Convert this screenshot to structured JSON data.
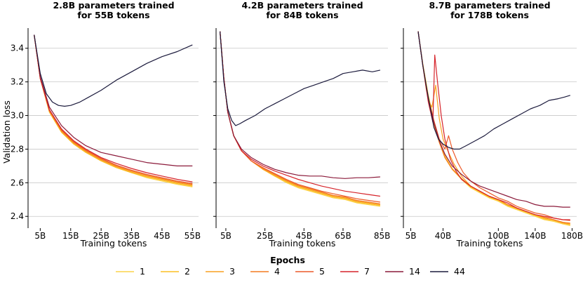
{
  "figure": {
    "ylabel": "Validation loss",
    "xlabel": "Training tokens",
    "legend_title": "Epochs"
  },
  "legend": [
    {
      "label": "1",
      "color": "#fcd34a"
    },
    {
      "label": "2",
      "color": "#fbbf24"
    },
    {
      "label": "3",
      "color": "#f9a020"
    },
    {
      "label": "4",
      "color": "#f47b20"
    },
    {
      "label": "5",
      "color": "#ec5a2a"
    },
    {
      "label": "7",
      "color": "#d6242b"
    },
    {
      "label": "14",
      "color": "#8b1a3a"
    },
    {
      "label": "44",
      "color": "#1c1b3d"
    }
  ],
  "chart_data": [
    {
      "type": "line",
      "title": "2.8B parameters trained\nfor 55B tokens",
      "xlabel": "Training tokens",
      "ylabel": "Validation loss",
      "xlim": [
        1,
        57
      ],
      "ylim": [
        2.33,
        3.52
      ],
      "yticks": [
        2.4,
        2.6,
        2.8,
        3.0,
        3.2,
        3.4
      ],
      "ytick_labels": [
        "2.4",
        "2.6",
        "2.8",
        "3.0",
        "3.2",
        "3.4"
      ],
      "xticks": [
        5,
        15,
        25,
        35,
        45,
        55
      ],
      "xtick_labels": [
        "5B",
        "15B",
        "25B",
        "35B",
        "45B",
        "55B"
      ],
      "series": [
        {
          "name": "1",
          "x": [
            3,
            5,
            8,
            12,
            16,
            20,
            25,
            30,
            35,
            40,
            45,
            50,
            55
          ],
          "y": [
            3.48,
            3.22,
            3.02,
            2.9,
            2.83,
            2.78,
            2.73,
            2.69,
            2.66,
            2.63,
            2.61,
            2.59,
            2.575
          ]
        },
        {
          "name": "2",
          "x": [
            3,
            5,
            8,
            12,
            16,
            20,
            25,
            30,
            35,
            40,
            45,
            50,
            55
          ],
          "y": [
            3.48,
            3.22,
            3.02,
            2.9,
            2.83,
            2.78,
            2.73,
            2.69,
            2.66,
            2.635,
            2.615,
            2.595,
            2.58
          ]
        },
        {
          "name": "3",
          "x": [
            3,
            5,
            8,
            12,
            16,
            20,
            25,
            30,
            35,
            40,
            45,
            50,
            55
          ],
          "y": [
            3.48,
            3.22,
            3.025,
            2.905,
            2.835,
            2.785,
            2.735,
            2.695,
            2.665,
            2.64,
            2.62,
            2.6,
            2.585
          ]
        },
        {
          "name": "4",
          "x": [
            3,
            5,
            8,
            12,
            16,
            20,
            25,
            30,
            35,
            40,
            45,
            50,
            55
          ],
          "y": [
            3.48,
            3.22,
            3.03,
            2.91,
            2.84,
            2.79,
            2.74,
            2.7,
            2.67,
            2.645,
            2.625,
            2.605,
            2.59
          ]
        },
        {
          "name": "5",
          "x": [
            3,
            5,
            8,
            12,
            16,
            20,
            25,
            30,
            35,
            40,
            45,
            50,
            55
          ],
          "y": [
            3.48,
            3.22,
            3.03,
            2.915,
            2.845,
            2.795,
            2.745,
            2.705,
            2.675,
            2.65,
            2.63,
            2.61,
            2.595
          ]
        },
        {
          "name": "7",
          "x": [
            3,
            5,
            8,
            12,
            16,
            20,
            25,
            30,
            35,
            40,
            45,
            50,
            55
          ],
          "y": [
            3.48,
            3.22,
            3.035,
            2.92,
            2.85,
            2.8,
            2.75,
            2.715,
            2.685,
            2.66,
            2.64,
            2.62,
            2.605
          ]
        },
        {
          "name": "14",
          "x": [
            3,
            5,
            8,
            12,
            16,
            20,
            25,
            30,
            35,
            40,
            45,
            50,
            55
          ],
          "y": [
            3.48,
            3.23,
            3.05,
            2.94,
            2.87,
            2.82,
            2.78,
            2.76,
            2.74,
            2.72,
            2.71,
            2.7,
            2.7
          ]
        },
        {
          "name": "44",
          "x": [
            3,
            5,
            7,
            9,
            11,
            13,
            15,
            18,
            21,
            25,
            30,
            35,
            40,
            45,
            50,
            55
          ],
          "y": [
            3.48,
            3.25,
            3.13,
            3.08,
            3.06,
            3.055,
            3.06,
            3.08,
            3.11,
            3.15,
            3.21,
            3.26,
            3.31,
            3.35,
            3.38,
            3.42
          ]
        }
      ]
    },
    {
      "type": "line",
      "title": "4.2B parameters trained\nfor 84B tokens",
      "xlabel": "Training tokens",
      "ylabel": "",
      "xlim": [
        0,
        88
      ],
      "ylim": [
        2.33,
        3.52
      ],
      "yticks": [
        2.4,
        2.6,
        2.8,
        3.0,
        3.2,
        3.4
      ],
      "xticks": [
        5,
        25,
        45,
        65,
        85
      ],
      "xtick_labels": [
        "5B",
        "25B",
        "45B",
        "65B",
        "85B"
      ],
      "series": [
        {
          "name": "1",
          "x": [
            2,
            4,
            6,
            9,
            13,
            18,
            24,
            30,
            36,
            42,
            48,
            54,
            60,
            66,
            72,
            78,
            84
          ],
          "y": [
            3.5,
            3.22,
            3.02,
            2.88,
            2.79,
            2.73,
            2.68,
            2.64,
            2.6,
            2.57,
            2.55,
            2.53,
            2.51,
            2.5,
            2.48,
            2.47,
            2.46
          ]
        },
        {
          "name": "2",
          "x": [
            2,
            4,
            6,
            9,
            13,
            18,
            24,
            30,
            36,
            42,
            48,
            54,
            60,
            66,
            72,
            78,
            84
          ],
          "y": [
            3.5,
            3.22,
            3.02,
            2.88,
            2.79,
            2.73,
            2.68,
            2.64,
            2.605,
            2.575,
            2.555,
            2.535,
            2.515,
            2.505,
            2.485,
            2.475,
            2.465
          ]
        },
        {
          "name": "3",
          "x": [
            2,
            4,
            6,
            9,
            13,
            18,
            24,
            30,
            36,
            42,
            48,
            54,
            60,
            66,
            72,
            78,
            84
          ],
          "y": [
            3.5,
            3.22,
            3.02,
            2.88,
            2.79,
            2.73,
            2.68,
            2.645,
            2.61,
            2.58,
            2.56,
            2.54,
            2.52,
            2.51,
            2.49,
            2.48,
            2.47
          ]
        },
        {
          "name": "4",
          "x": [
            2,
            4,
            6,
            9,
            13,
            18,
            24,
            30,
            36,
            42,
            48,
            54,
            60,
            66,
            72,
            78,
            84
          ],
          "y": [
            3.5,
            3.22,
            3.02,
            2.88,
            2.79,
            2.73,
            2.685,
            2.65,
            2.615,
            2.585,
            2.565,
            2.545,
            2.525,
            2.515,
            2.495,
            2.485,
            2.475
          ]
        },
        {
          "name": "5",
          "x": [
            2,
            4,
            6,
            9,
            13,
            18,
            24,
            30,
            36,
            42,
            48,
            54,
            60,
            66,
            72,
            78,
            84
          ],
          "y": [
            3.5,
            3.22,
            3.02,
            2.88,
            2.79,
            2.73,
            2.69,
            2.655,
            2.62,
            2.59,
            2.57,
            2.55,
            2.535,
            2.52,
            2.505,
            2.495,
            2.485
          ]
        },
        {
          "name": "7",
          "x": [
            2,
            4,
            6,
            9,
            13,
            18,
            24,
            30,
            36,
            42,
            48,
            54,
            60,
            66,
            72,
            78,
            84
          ],
          "y": [
            3.5,
            3.22,
            3.02,
            2.88,
            2.79,
            2.74,
            2.7,
            2.67,
            2.645,
            2.62,
            2.6,
            2.58,
            2.565,
            2.55,
            2.54,
            2.53,
            2.52
          ]
        },
        {
          "name": "14",
          "x": [
            2,
            4,
            6,
            9,
            13,
            18,
            24,
            30,
            36,
            42,
            48,
            54,
            60,
            66,
            72,
            78,
            84
          ],
          "y": [
            3.5,
            3.22,
            3.02,
            2.88,
            2.8,
            2.75,
            2.71,
            2.68,
            2.66,
            2.645,
            2.64,
            2.64,
            2.63,
            2.625,
            2.63,
            2.63,
            2.635
          ]
        },
        {
          "name": "44",
          "x": [
            2,
            4,
            6,
            8,
            10,
            12,
            15,
            20,
            25,
            30,
            35,
            40,
            45,
            50,
            55,
            60,
            65,
            70,
            75,
            80,
            84
          ],
          "y": [
            3.5,
            3.2,
            3.04,
            2.97,
            2.94,
            2.95,
            2.97,
            3.0,
            3.04,
            3.07,
            3.1,
            3.13,
            3.16,
            3.18,
            3.2,
            3.22,
            3.25,
            3.26,
            3.27,
            3.26,
            3.27
          ]
        }
      ]
    },
    {
      "type": "line",
      "title": "8.7B parameters trained\nfor 178B tokens",
      "xlabel": "Training tokens",
      "ylabel": "",
      "xlim": [
        -3,
        185
      ],
      "ylim": [
        2.33,
        3.52
      ],
      "yticks": [
        2.4,
        2.6,
        2.8,
        3.0,
        3.2,
        3.4
      ],
      "xticks": [
        5,
        40,
        100,
        140,
        180
      ],
      "xtick_labels": [
        "5B",
        "40B",
        "100B",
        "140B",
        "180B"
      ],
      "series": [
        {
          "name": "1",
          "x": [
            13,
            18,
            24,
            30,
            36,
            42,
            50,
            60,
            70,
            80,
            90,
            100,
            110,
            120,
            130,
            140,
            150,
            160,
            170,
            178
          ],
          "y": [
            3.5,
            3.3,
            3.1,
            2.95,
            2.84,
            2.75,
            2.68,
            2.62,
            2.57,
            2.54,
            2.51,
            2.49,
            2.46,
            2.44,
            2.42,
            2.4,
            2.38,
            2.37,
            2.355,
            2.345
          ]
        },
        {
          "name": "2",
          "x": [
            13,
            18,
            24,
            30,
            36,
            42,
            50,
            60,
            70,
            80,
            90,
            100,
            110,
            120,
            130,
            140,
            150,
            160,
            170,
            178
          ],
          "y": [
            3.5,
            3.31,
            3.12,
            2.97,
            2.85,
            2.76,
            2.685,
            2.625,
            2.575,
            2.545,
            2.515,
            2.495,
            2.465,
            2.445,
            2.425,
            2.405,
            2.385,
            2.375,
            2.36,
            2.35
          ]
        },
        {
          "name": "3",
          "x": [
            13,
            18,
            22,
            25,
            28,
            32,
            36,
            40,
            46,
            52,
            60,
            70,
            80,
            90,
            100,
            110,
            120,
            130,
            140,
            150,
            160,
            170,
            178
          ],
          "y": [
            3.5,
            3.3,
            3.15,
            3.08,
            3.05,
            3.18,
            2.98,
            2.86,
            2.78,
            2.71,
            2.64,
            2.58,
            2.55,
            2.52,
            2.5,
            2.47,
            2.45,
            2.43,
            2.41,
            2.39,
            2.38,
            2.36,
            2.355
          ]
        },
        {
          "name": "4",
          "x": [
            13,
            18,
            24,
            30,
            36,
            42,
            50,
            60,
            70,
            80,
            90,
            100,
            110,
            120,
            130,
            140,
            150,
            160,
            170,
            178
          ],
          "y": [
            3.5,
            3.3,
            3.1,
            2.95,
            2.84,
            2.75,
            2.68,
            2.625,
            2.58,
            2.55,
            2.52,
            2.5,
            2.47,
            2.45,
            2.43,
            2.41,
            2.395,
            2.38,
            2.365,
            2.36
          ]
        },
        {
          "name": "5",
          "x": [
            13,
            18,
            24,
            30,
            36,
            42,
            46,
            50,
            56,
            62,
            70,
            80,
            90,
            100,
            110,
            120,
            130,
            140,
            150,
            160,
            170,
            178
          ],
          "y": [
            3.5,
            3.3,
            3.1,
            2.97,
            2.86,
            2.8,
            2.88,
            2.8,
            2.72,
            2.66,
            2.61,
            2.57,
            2.54,
            2.51,
            2.49,
            2.46,
            2.44,
            2.42,
            2.41,
            2.39,
            2.38,
            2.375
          ]
        },
        {
          "name": "7",
          "x": [
            13,
            18,
            24,
            29,
            31,
            34,
            38,
            42,
            48,
            54,
            60,
            70,
            80,
            90,
            100,
            110,
            120,
            130,
            140,
            150,
            160,
            170,
            178
          ],
          "y": [
            3.5,
            3.3,
            3.08,
            2.96,
            3.36,
            3.2,
            3.0,
            2.86,
            2.74,
            2.67,
            2.62,
            2.58,
            2.55,
            2.52,
            2.5,
            2.48,
            2.45,
            2.43,
            2.41,
            2.4,
            2.39,
            2.38,
            2.38
          ]
        },
        {
          "name": "14",
          "x": [
            13,
            18,
            24,
            30,
            36,
            42,
            50,
            60,
            70,
            80,
            90,
            100,
            110,
            120,
            130,
            140,
            150,
            160,
            170,
            178
          ],
          "y": [
            3.5,
            3.3,
            3.1,
            2.96,
            2.85,
            2.77,
            2.7,
            2.65,
            2.61,
            2.58,
            2.56,
            2.54,
            2.52,
            2.5,
            2.49,
            2.47,
            2.46,
            2.46,
            2.455,
            2.455
          ]
        },
        {
          "name": "44",
          "x": [
            13,
            18,
            22,
            26,
            30,
            35,
            40,
            46,
            52,
            58,
            65,
            75,
            85,
            95,
            105,
            115,
            125,
            135,
            145,
            155,
            165,
            172,
            178
          ],
          "y": [
            3.5,
            3.3,
            3.17,
            3.05,
            2.93,
            2.86,
            2.83,
            2.81,
            2.8,
            2.8,
            2.82,
            2.85,
            2.88,
            2.92,
            2.95,
            2.98,
            3.01,
            3.04,
            3.06,
            3.09,
            3.1,
            3.11,
            3.12
          ]
        }
      ]
    }
  ]
}
